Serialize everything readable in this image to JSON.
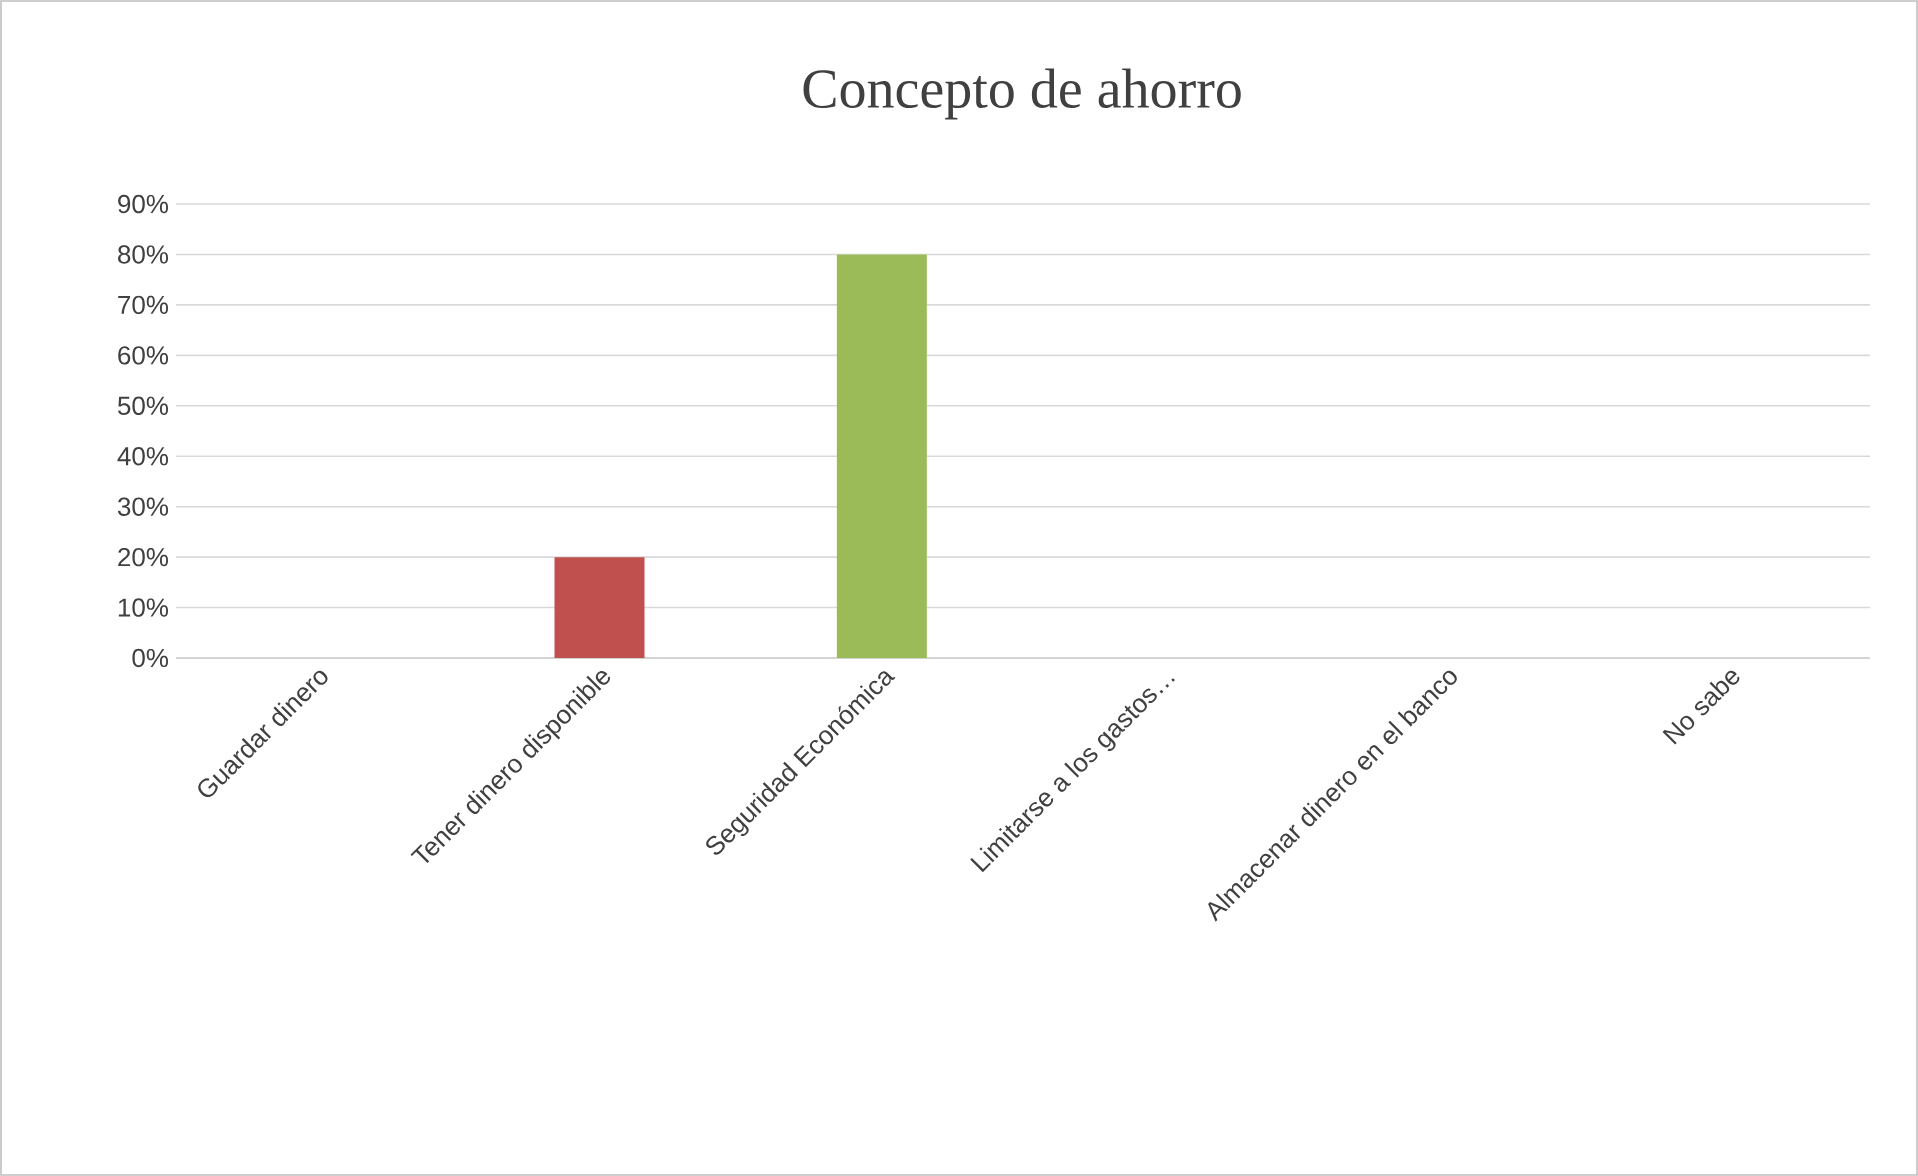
{
  "chart_data": {
    "type": "bar",
    "title": "Concepto de ahorro",
    "categories": [
      "Guardar dinero",
      "Tener dinero disponible",
      "Seguridad Económica",
      "Limitarse a los gastos…",
      "Almacenar dinero en el banco",
      "No sabe"
    ],
    "values": [
      0,
      20,
      80,
      0,
      0,
      0
    ],
    "colors": [
      "#4f81bd",
      "#c0504d",
      "#9bbb59",
      "#8064a2",
      "#4bacc6",
      "#f79646"
    ],
    "ylim": [
      0,
      90
    ],
    "yticks": [
      {
        "value": 0,
        "label": "0%"
      },
      {
        "value": 10,
        "label": "10%"
      },
      {
        "value": 20,
        "label": "20%"
      },
      {
        "value": 30,
        "label": "30%"
      },
      {
        "value": 40,
        "label": "40%"
      },
      {
        "value": 50,
        "label": "50%"
      },
      {
        "value": 60,
        "label": "60%"
      },
      {
        "value": 70,
        "label": "70%"
      },
      {
        "value": 80,
        "label": "80%"
      },
      {
        "value": 90,
        "label": "90%"
      }
    ],
    "grid": "y"
  }
}
